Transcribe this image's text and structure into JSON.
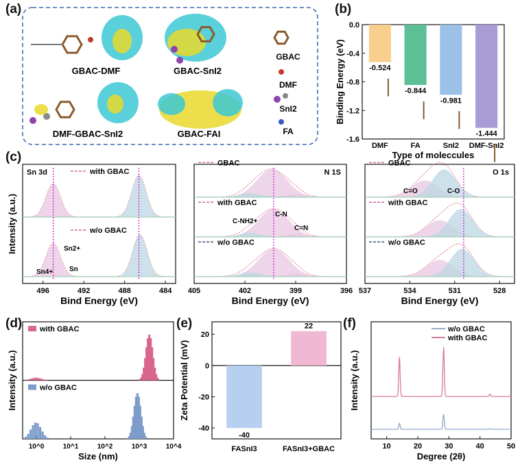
{
  "panel_labels": {
    "a": "(a)",
    "b": "(b)",
    "c": "(c)",
    "d": "(d)",
    "e": "(e)",
    "f": "(f)"
  },
  "panel_a": {
    "structures": [
      "GBAC-DMF",
      "GBAC-SnI2",
      "DMF-GBAC-SnI2",
      "GBAC-FAI"
    ],
    "legend": [
      "GBAC",
      "DMF",
      "SnI2",
      "FA"
    ],
    "colors": {
      "border": "#3a6fb3",
      "cyan": "#3cc8d3",
      "yellow": "#e9d92b"
    }
  },
  "chart_data": [
    {
      "panel": "b",
      "type": "bar",
      "categories": [
        "DMF",
        "FA",
        "SnI2",
        "DMF-SnI2"
      ],
      "values": [
        -0.524,
        -0.844,
        -0.981,
        -1.444
      ],
      "value_labels": [
        "-0.524",
        "-0.844",
        "-0.981",
        "-1.444"
      ],
      "colors": [
        "#f8cf8d",
        "#5cbf95",
        "#9bc2e6",
        "#a99bd6"
      ],
      "xlabel": "Type of moleccules",
      "ylabel": "Binding Energy (eV)",
      "ylim": [
        -1.6,
        0.0
      ],
      "y_inverted": true,
      "yticks": [
        "-1.6",
        "-1.2",
        "-0.8",
        "-0.4",
        "0.0"
      ]
    },
    {
      "panel": "c1",
      "type": "line",
      "xlabel": "Bind Energy (eV)",
      "ylabel": "Intensity (a.u.)",
      "title": "Sn 3d",
      "xlim": [
        483,
        498
      ],
      "xticks": [
        "496",
        "492",
        "488",
        "484"
      ],
      "series": [
        {
          "name": "with GBAC",
          "peaks": [
            {
              "x": 495.0,
              "h": 0.8
            },
            {
              "x": 486.6,
              "h": 1.0
            }
          ]
        },
        {
          "name": "w/o GBAC",
          "peaks": [
            {
              "x": 495.0,
              "h": 0.8
            },
            {
              "x": 486.5,
              "h": 1.0
            }
          ]
        }
      ],
      "annotations": [
        "Sn4+",
        "Sn2+",
        "Sn"
      ],
      "marker_lines_x": [
        495.0,
        486.6
      ]
    },
    {
      "panel": "c2",
      "type": "line",
      "xlabel": "Bind Energy (eV)",
      "title": "N 1S",
      "xlim": [
        396,
        405
      ],
      "xticks": [
        "405",
        "402",
        "399",
        "396"
      ],
      "series": [
        {
          "name": "GBAC",
          "peak": 400.4
        },
        {
          "name": "with GBAC",
          "peak": 400.3
        },
        {
          "name": "w/o GBAC",
          "peak": 400.3
        }
      ],
      "annotations": [
        "C-NH2+",
        "C-N",
        "C=N"
      ],
      "marker_lines_x": [
        400.3
      ]
    },
    {
      "panel": "c3",
      "type": "line",
      "xlabel": "Bind Energy (eV)",
      "title": "O 1s",
      "xlim": [
        527,
        537
      ],
      "xticks": [
        "537",
        "534",
        "531",
        "528"
      ],
      "series": [
        {
          "name": "GBAC",
          "peaks": [
            533.0,
            531.7
          ]
        },
        {
          "name": "with GBAC",
          "peaks": [
            532.0,
            530.6
          ]
        },
        {
          "name": "w/o GBAC",
          "peaks": [
            532.0,
            530.5
          ]
        }
      ],
      "annotations": [
        "C=O",
        "C-O"
      ],
      "marker_lines_x": [
        530.4
      ]
    },
    {
      "panel": "d",
      "type": "bar",
      "xlabel": "Size (nm)",
      "ylabel": "Intensity (a.u.)",
      "x_scale": "log",
      "xticks": [
        "10^0",
        "10^1",
        "10^2",
        "10^3",
        "10^4"
      ],
      "series": [
        {
          "name": "with GBAC",
          "color": "#d9668d",
          "main_peak_nm": 2000,
          "minor_peak_nm": 1.0
        },
        {
          "name": "w/o GBAC",
          "color": "#7d9cc9",
          "main_peak_nm": 900,
          "minor_peak_nm": 1.0
        }
      ]
    },
    {
      "panel": "e",
      "type": "bar",
      "ylabel": "Zeta Potential (mV)",
      "categories": [
        "FASnI3",
        "FASnI3+GBAC"
      ],
      "values": [
        -40,
        22
      ],
      "value_labels": [
        "-40",
        "22"
      ],
      "colors": [
        "#b7cff0",
        "#f1b8d3"
      ],
      "ylim": [
        -47,
        28
      ],
      "yticks": [
        "20",
        "0",
        "-20",
        "-40"
      ]
    },
    {
      "panel": "f",
      "type": "line",
      "xlabel": "Degree (2θ)",
      "ylabel": "Intensity (a.u.)",
      "xlim": [
        5,
        50
      ],
      "xticks": [
        "10",
        "20",
        "30",
        "40",
        "50"
      ],
      "series": [
        {
          "name": "w/o GBAC",
          "color": "#8eaacb",
          "peaks": [
            14.1,
            28.3,
            43.2
          ]
        },
        {
          "name": "with GBAC",
          "color": "#d9789f",
          "peaks": [
            14.1,
            28.3,
            43.2
          ]
        }
      ]
    }
  ]
}
